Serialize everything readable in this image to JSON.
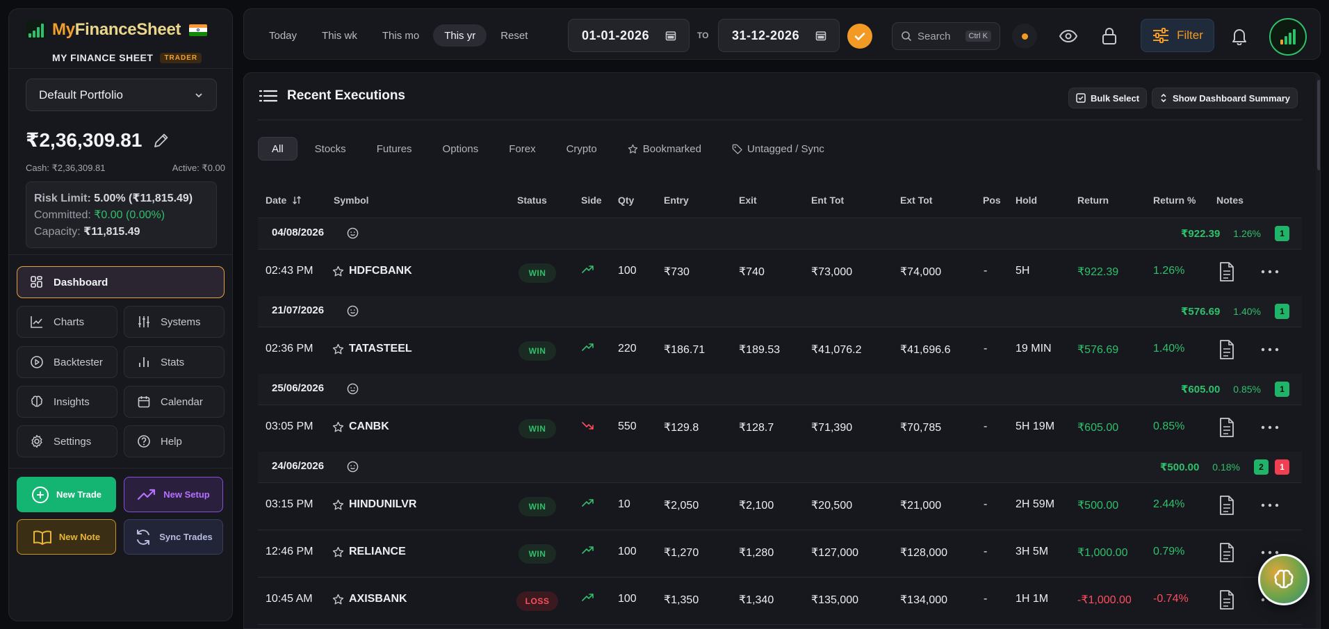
{
  "brand": {
    "name_part1": "My",
    "name_part2": "FinanceSheet",
    "subtitle": "MY FINANCE SHEET",
    "badge": "TRADER"
  },
  "sidebar": {
    "portfolio": "Default Portfolio",
    "balance": "₹2,36,309.81",
    "cash": "Cash: ₹2,36,309.81",
    "active": "Active: ₹0.00",
    "risk": {
      "limit_label": "Risk Limit: ",
      "limit_value": "5.00% (₹11,815.49)",
      "committed_label": "Committed: ",
      "committed_value": "₹0.00 (0.00%)",
      "capacity_label": "Capacity: ",
      "capacity_value": "₹11,815.49"
    },
    "nav": {
      "dashboard": "Dashboard",
      "charts": "Charts",
      "systems": "Systems",
      "backtester": "Backtester",
      "stats": "Stats",
      "insights": "Insights",
      "calendar": "Calendar",
      "settings": "Settings",
      "help": "Help"
    },
    "actions": {
      "new_trade": "New Trade",
      "new_setup": "New Setup",
      "new_note": "New Note",
      "sync_trades": "Sync Trades"
    }
  },
  "topbar": {
    "ranges": [
      "Today",
      "This wk",
      "This mo",
      "This yr",
      "Reset"
    ],
    "active_range": "This yr",
    "date_from": "01-01-2026",
    "to_label": "TO",
    "date_to": "31-12-2026",
    "search_placeholder": "Search",
    "search_shortcut": "Ctrl K",
    "filter_label": "Filter"
  },
  "panel": {
    "title": "Recent Executions",
    "bulk_select": "Bulk Select",
    "show_summary": "Show Dashboard Summary",
    "tabs": [
      "All",
      "Stocks",
      "Futures",
      "Options",
      "Forex",
      "Crypto",
      "Bookmarked",
      "Untagged / Sync"
    ],
    "active_tab": "All",
    "columns": [
      "Date",
      "Symbol",
      "Status",
      "Side",
      "Qty",
      "Entry",
      "Exit",
      "Ent Tot",
      "Ext Tot",
      "Pos",
      "Hold",
      "Return",
      "Return %",
      "Notes"
    ]
  },
  "groups": [
    {
      "date": "04/08/2026",
      "total": "₹922.39",
      "pct": "1.26%",
      "wins": "1",
      "losses": null,
      "trades": [
        {
          "time": "02:43 PM",
          "symbol": "HDFCBANK",
          "status": "WIN",
          "side": "up",
          "qty": "100",
          "entry": "₹730",
          "exit": "₹740",
          "ent_tot": "₹73,000",
          "ext_tot": "₹74,000",
          "pos": "-",
          "hold": "5H",
          "ret": "₹922.39",
          "ret_pct": "1.26%"
        }
      ]
    },
    {
      "date": "21/07/2026",
      "total": "₹576.69",
      "pct": "1.40%",
      "wins": "1",
      "losses": null,
      "trades": [
        {
          "time": "02:36 PM",
          "symbol": "TATASTEEL",
          "status": "WIN",
          "side": "up",
          "qty": "220",
          "entry": "₹186.71",
          "exit": "₹189.53",
          "ent_tot": "₹41,076.2",
          "ext_tot": "₹41,696.6",
          "pos": "-",
          "hold": "19 MIN",
          "ret": "₹576.69",
          "ret_pct": "1.40%"
        }
      ]
    },
    {
      "date": "25/06/2026",
      "total": "₹605.00",
      "pct": "0.85%",
      "wins": "1",
      "losses": null,
      "trades": [
        {
          "time": "03:05 PM",
          "symbol": "CANBK",
          "status": "WIN",
          "side": "down",
          "qty": "550",
          "entry": "₹129.8",
          "exit": "₹128.7",
          "ent_tot": "₹71,390",
          "ext_tot": "₹70,785",
          "pos": "-",
          "hold": "5H 19M",
          "ret": "₹605.00",
          "ret_pct": "0.85%"
        }
      ]
    },
    {
      "date": "24/06/2026",
      "total": "₹500.00",
      "pct": "0.18%",
      "wins": "2",
      "losses": "1",
      "trades": [
        {
          "time": "03:15 PM",
          "symbol": "HINDUNILVR",
          "status": "WIN",
          "side": "up",
          "qty": "10",
          "entry": "₹2,050",
          "exit": "₹2,100",
          "ent_tot": "₹20,500",
          "ext_tot": "₹21,000",
          "pos": "-",
          "hold": "2H 59M",
          "ret": "₹500.00",
          "ret_pct": "2.44%"
        },
        {
          "time": "12:46 PM",
          "symbol": "RELIANCE",
          "status": "WIN",
          "side": "up",
          "qty": "100",
          "entry": "₹1,270",
          "exit": "₹1,280",
          "ent_tot": "₹127,000",
          "ext_tot": "₹128,000",
          "pos": "-",
          "hold": "3H 5M",
          "ret": "₹1,000.00",
          "ret_pct": "0.79%"
        },
        {
          "time": "10:45 AM",
          "symbol": "AXISBANK",
          "status": "LOSS",
          "side": "up",
          "qty": "100",
          "entry": "₹1,350",
          "exit": "₹1,340",
          "ent_tot": "₹135,000",
          "ext_tot": "₹134,000",
          "pos": "-",
          "hold": "1H 1M",
          "ret": "-₹1,000.00",
          "ret_pct": "-0.74%"
        }
      ]
    }
  ],
  "colors": {
    "accent": "#f39a25",
    "win": "#2fc06b",
    "loss": "#ff4d5e",
    "purple": "#b770ff",
    "gold": "#e8b43a"
  }
}
